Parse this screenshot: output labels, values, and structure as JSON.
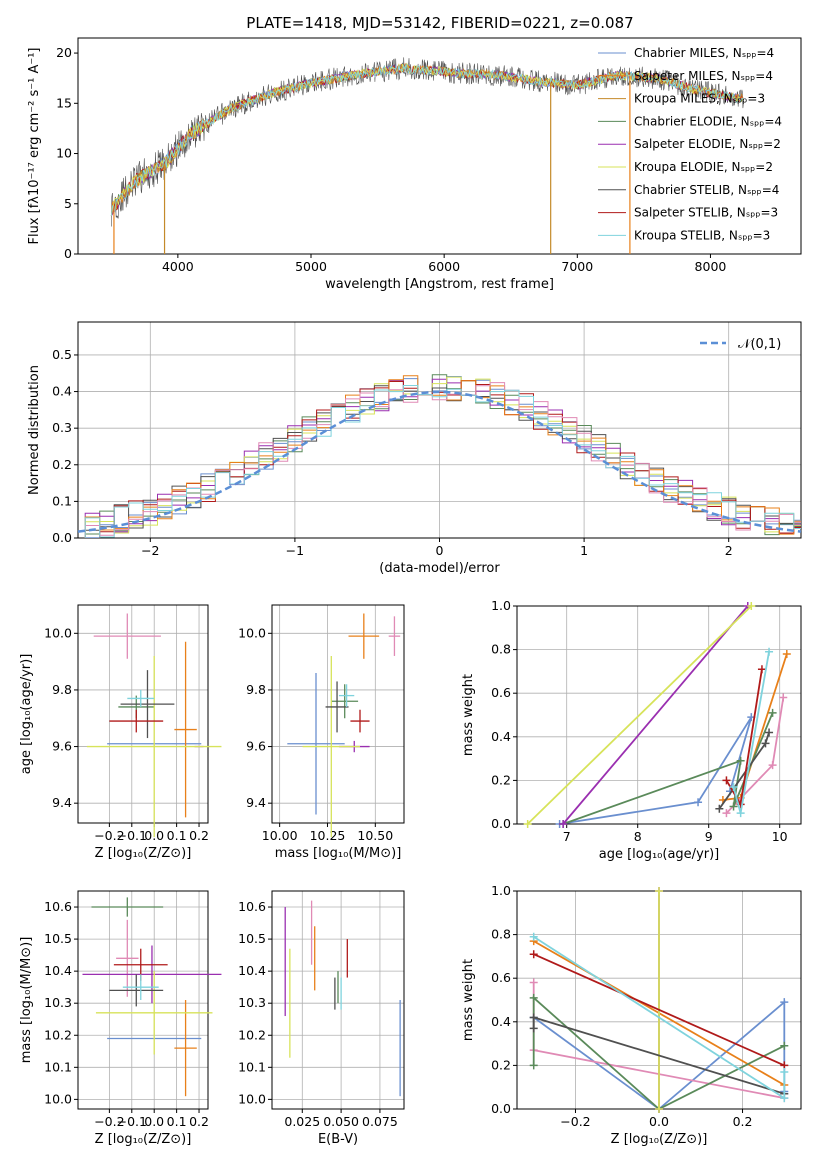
{
  "colors": [
    "#6a8fcf",
    "#e8801a",
    "#e08ab5",
    "#5a8a5a",
    "#9a2fb0",
    "#d7e35a",
    "#505050",
    "#b01a1a",
    "#7fd3dd"
  ],
  "chart_data": [
    {
      "id": "spectrum",
      "type": "line",
      "title": "PLATE=1418, MJD=53142, FIBERID=0221, z=0.087",
      "xlabel": "wavelength [Angstrom, rest frame]",
      "ylabel": "Flux [fλ10⁻¹⁷ erg cm⁻² s⁻¹ A⁻¹]",
      "xlim": [
        3250,
        8680
      ],
      "ylim": [
        0,
        21.5
      ],
      "xticks": [
        4000,
        5000,
        6000,
        7000,
        8000
      ],
      "yticks": [
        0,
        5,
        10,
        15,
        20
      ],
      "legend_position": "upper right",
      "series": [
        {
          "name": "Chabrier MILES, Nₛₚₚ=4",
          "color": "#6a8fcf"
        },
        {
          "name": "Salpeter MILES, Nₛₚₚ=4",
          "color": "#e8801a"
        },
        {
          "name": "Kroupa MILES, Nₛₚₚ=3",
          "color": "#c48a2a"
        },
        {
          "name": "Chabrier ELODIE, Nₛₚₚ=4",
          "color": "#5a8a5a"
        },
        {
          "name": "Salpeter ELODIE, Nₛₚₚ=2",
          "color": "#9a2fb0"
        },
        {
          "name": "Kroupa ELODIE, Nₛₚₚ=2",
          "color": "#d7e35a"
        },
        {
          "name": "Chabrier STELIB, Nₛₚₚ=4",
          "color": "#505050"
        },
        {
          "name": "Salpeter STELIB, Nₛₚₚ=3",
          "color": "#b01a1a"
        },
        {
          "name": "Kroupa STELIB, Nₛₚₚ=3",
          "color": "#7fd3dd"
        }
      ],
      "continuum_points": [
        [
          3500,
          4.5
        ],
        [
          3700,
          7.5
        ],
        [
          3900,
          9
        ],
        [
          4100,
          12
        ],
        [
          4400,
          14.5
        ],
        [
          4700,
          16
        ],
        [
          5000,
          17
        ],
        [
          5300,
          17.8
        ],
        [
          5700,
          18.5
        ],
        [
          6100,
          18
        ],
        [
          6400,
          17.8
        ],
        [
          6700,
          17.2
        ],
        [
          7000,
          16.8
        ],
        [
          7300,
          17.8
        ],
        [
          7600,
          17.5
        ],
        [
          7900,
          16.3
        ],
        [
          8200,
          15.5
        ]
      ]
    },
    {
      "id": "residuals",
      "type": "histogram",
      "xlabel": "(data-model)/error",
      "ylabel": "Normed distribution",
      "xlim": [
        -2.5,
        2.5
      ],
      "ylim": [
        0,
        0.59
      ],
      "xticks": [
        -2,
        -1,
        0,
        1,
        2
      ],
      "yticks": [
        0.0,
        0.1,
        0.2,
        0.3,
        0.4,
        0.5
      ],
      "legend": "𝒩(0,1)",
      "legend_position": "upper right",
      "bin_width": 0.1
    },
    {
      "id": "age_vs_Z",
      "type": "errorbar",
      "xlabel": "Z [log₁₀(Z/Z⊙)]",
      "ylabel": "age  [log₁₀(age/yr)]",
      "xlim": [
        -0.34,
        0.24
      ],
      "ylim": [
        9.33,
        10.1
      ],
      "xticks": [
        -0.2,
        -0.1,
        0.0,
        0.1,
        0.2
      ],
      "yticks": [
        9.4,
        9.6,
        9.8,
        10.0
      ],
      "points": [
        {
          "x": 0.0,
          "y": 9.61,
          "xerr": 0.21,
          "yerr": 0.0
        },
        {
          "x": 0.14,
          "y": 9.66,
          "xerr": 0.05,
          "yerr": 0.31
        },
        {
          "x": -0.12,
          "y": 9.99,
          "xerr": 0.15,
          "yerr": 0.08
        },
        {
          "x": -0.08,
          "y": 9.74,
          "xerr": 0.08,
          "yerr": 0.04
        },
        {
          "x": 0.2,
          "y": 9.6,
          "xerr": 0.02,
          "yerr": 0.0
        },
        {
          "x": 0.0,
          "y": 9.6,
          "xerr": 0.3,
          "yerr": 0.32
        },
        {
          "x": -0.03,
          "y": 9.75,
          "xerr": 0.12,
          "yerr": 0.12
        },
        {
          "x": -0.08,
          "y": 9.69,
          "xerr": 0.12,
          "yerr": 0.04
        },
        {
          "x": -0.06,
          "y": 9.77,
          "xerr": 0.06,
          "yerr": 0.03
        }
      ]
    },
    {
      "id": "age_vs_mass",
      "type": "errorbar",
      "xlabel": "mass [log₁₀(M/M⊙)]",
      "xlim": [
        9.96,
        10.65
      ],
      "ylim": [
        9.33,
        10.1
      ],
      "xticks": [
        10.0,
        10.25,
        10.5
      ],
      "xticklabels": [
        "10.00",
        "10.25",
        "10.50"
      ],
      "yticks": [
        9.4,
        9.6,
        9.8,
        10.0
      ],
      "points": [
        {
          "x": 10.19,
          "y": 9.61,
          "xerr": 0.15,
          "yerr": 0.25
        },
        {
          "x": 10.44,
          "y": 9.99,
          "xerr": 0.08,
          "yerr": 0.08
        },
        {
          "x": 10.6,
          "y": 9.99,
          "xerr": 0.03,
          "yerr": 0.07
        },
        {
          "x": 10.34,
          "y": 9.76,
          "xerr": 0.07,
          "yerr": 0.06
        },
        {
          "x": 10.39,
          "y": 9.6,
          "xerr": 0.08,
          "yerr": 0.02
        },
        {
          "x": 10.27,
          "y": 9.6,
          "xerr": 0.15,
          "yerr": 0.32
        },
        {
          "x": 10.3,
          "y": 9.74,
          "xerr": 0.06,
          "yerr": 0.09
        },
        {
          "x": 10.42,
          "y": 9.69,
          "xerr": 0.05,
          "yerr": 0.04
        },
        {
          "x": 10.35,
          "y": 9.78,
          "xerr": 0.04,
          "yerr": 0.04
        }
      ]
    },
    {
      "id": "weight_vs_age",
      "type": "line",
      "xlabel": "age  [log₁₀(age/yr)]",
      "ylabel": "mass weight",
      "xlim": [
        6.3,
        10.3
      ],
      "ylim": [
        0,
        1.0
      ],
      "xticks": [
        7,
        8,
        9,
        10
      ],
      "yticks": [
        0.0,
        0.2,
        0.4,
        0.6,
        0.8,
        1.0
      ],
      "series": [
        {
          "points": [
            [
              6.9,
              0.0
            ],
            [
              8.85,
              0.1
            ],
            [
              9.6,
              0.49
            ],
            [
              9.3,
              0.15
            ]
          ]
        },
        {
          "points": [
            [
              9.2,
              0.11
            ],
            [
              9.45,
              0.12
            ],
            [
              10.1,
              0.78
            ]
          ]
        },
        {
          "points": [
            [
              9.25,
              0.05
            ],
            [
              9.9,
              0.27
            ],
            [
              10.05,
              0.58
            ]
          ]
        },
        {
          "points": [
            [
              6.95,
              0.0
            ],
            [
              9.45,
              0.29
            ],
            [
              9.35,
              0.08
            ],
            [
              9.9,
              0.51
            ]
          ]
        },
        {
          "points": [
            [
              6.95,
              0.0
            ],
            [
              9.55,
              1.0
            ]
          ]
        },
        {
          "points": [
            [
              6.45,
              0.0
            ],
            [
              9.6,
              1.0
            ]
          ]
        },
        {
          "points": [
            [
              9.15,
              0.07
            ],
            [
              9.8,
              0.37
            ],
            [
              9.85,
              0.42
            ]
          ]
        },
        {
          "points": [
            [
              9.25,
              0.2
            ],
            [
              9.45,
              0.09
            ],
            [
              9.75,
              0.71
            ]
          ]
        },
        {
          "points": [
            [
              9.35,
              0.17
            ],
            [
              9.45,
              0.05
            ],
            [
              9.85,
              0.79
            ]
          ]
        }
      ]
    },
    {
      "id": "mass_vs_Z",
      "type": "errorbar",
      "xlabel": "Z [log₁₀(Z/Z⊙)]",
      "ylabel": "mass [log₁₀(M/M⊙)]",
      "xlim": [
        -0.34,
        0.24
      ],
      "ylim": [
        9.97,
        10.65
      ],
      "xticks": [
        -0.2,
        -0.1,
        0.0,
        0.1,
        0.2
      ],
      "yticks": [
        10.0,
        10.1,
        10.2,
        10.3,
        10.4,
        10.5,
        10.6
      ],
      "points": [
        {
          "x": 0.0,
          "y": 10.19,
          "xerr": 0.21,
          "yerr": 0.0
        },
        {
          "x": 0.14,
          "y": 10.16,
          "xerr": 0.05,
          "yerr": 0.15
        },
        {
          "x": -0.12,
          "y": 10.44,
          "xerr": 0.05,
          "yerr": 0.12
        },
        {
          "x": -0.12,
          "y": 10.6,
          "xerr": 0.16,
          "yerr": 0.03
        },
        {
          "x": -0.01,
          "y": 10.39,
          "xerr": 0.31,
          "yerr": 0.09
        },
        {
          "x": 0.0,
          "y": 10.27,
          "xerr": 0.26,
          "yerr": 0.13
        },
        {
          "x": -0.08,
          "y": 10.34,
          "xerr": 0.12,
          "yerr": 0.05
        },
        {
          "x": -0.06,
          "y": 10.42,
          "xerr": 0.12,
          "yerr": 0.05
        },
        {
          "x": -0.06,
          "y": 10.35,
          "xerr": 0.08,
          "yerr": 0.04
        }
      ]
    },
    {
      "id": "mass_vs_ebv",
      "type": "errorbar",
      "xlabel": "E(B-V)",
      "xlim": [
        0.0055,
        0.0905
      ],
      "ylim": [
        9.97,
        10.65
      ],
      "xticks": [
        0.025,
        0.05,
        0.075
      ],
      "xticklabels": [
        "0.025",
        "0.050",
        "0.075"
      ],
      "yticks": [
        10.0,
        10.1,
        10.2,
        10.3,
        10.4,
        10.5,
        10.6
      ],
      "points": [
        {
          "x": 0.088,
          "y": 10.16,
          "yerr": 0.15
        },
        {
          "x": 0.033,
          "y": 10.44,
          "yerr": 0.1
        },
        {
          "x": 0.031,
          "y": 10.52,
          "yerr": 0.1
        },
        {
          "x": 0.048,
          "y": 10.35,
          "yerr": 0.05
        },
        {
          "x": 0.014,
          "y": 10.43,
          "yerr": 0.17
        },
        {
          "x": 0.017,
          "y": 10.3,
          "yerr": 0.17
        },
        {
          "x": 0.046,
          "y": 10.33,
          "yerr": 0.05
        },
        {
          "x": 0.054,
          "y": 10.44,
          "yerr": 0.06
        },
        {
          "x": 0.05,
          "y": 10.33,
          "yerr": 0.05
        }
      ]
    },
    {
      "id": "weight_vs_Z",
      "type": "line",
      "xlabel": "Z [log₁₀(Z/Z⊙)]",
      "ylabel": "mass weight",
      "xlim": [
        -0.34,
        0.34
      ],
      "ylim": [
        0,
        1.0
      ],
      "xticks": [
        -0.2,
        0.0,
        0.2
      ],
      "yticks": [
        0.0,
        0.2,
        0.4,
        0.6,
        0.8,
        1.0
      ],
      "series": [
        {
          "points": [
            [
              -0.3,
              0.42
            ],
            [
              0.0,
              0.0
            ],
            [
              0.3,
              0.49
            ],
            [
              0.3,
              0.08
            ]
          ]
        },
        {
          "points": [
            [
              -0.3,
              0.77
            ],
            [
              0.3,
              0.11
            ]
          ]
        },
        {
          "points": [
            [
              -0.3,
              0.58
            ],
            [
              -0.3,
              0.27
            ],
            [
              0.3,
              0.05
            ]
          ]
        },
        {
          "points": [
            [
              -0.3,
              0.2
            ],
            [
              -0.3,
              0.51
            ],
            [
              0.0,
              0.0
            ],
            [
              0.3,
              0.29
            ]
          ]
        },
        {
          "points": [
            [
              0.0,
              1.0
            ],
            [
              0.0,
              0.0
            ]
          ]
        },
        {
          "points": [
            [
              0.0,
              0.0
            ],
            [
              0.0,
              1.0
            ]
          ]
        },
        {
          "points": [
            [
              -0.3,
              0.37
            ],
            [
              -0.3,
              0.42
            ],
            [
              0.3,
              0.07
            ]
          ]
        },
        {
          "points": [
            [
              -0.3,
              0.71
            ],
            [
              0.3,
              0.2
            ]
          ]
        },
        {
          "points": [
            [
              -0.3,
              0.79
            ],
            [
              0.3,
              0.05
            ],
            [
              0.3,
              0.17
            ]
          ]
        }
      ]
    }
  ]
}
